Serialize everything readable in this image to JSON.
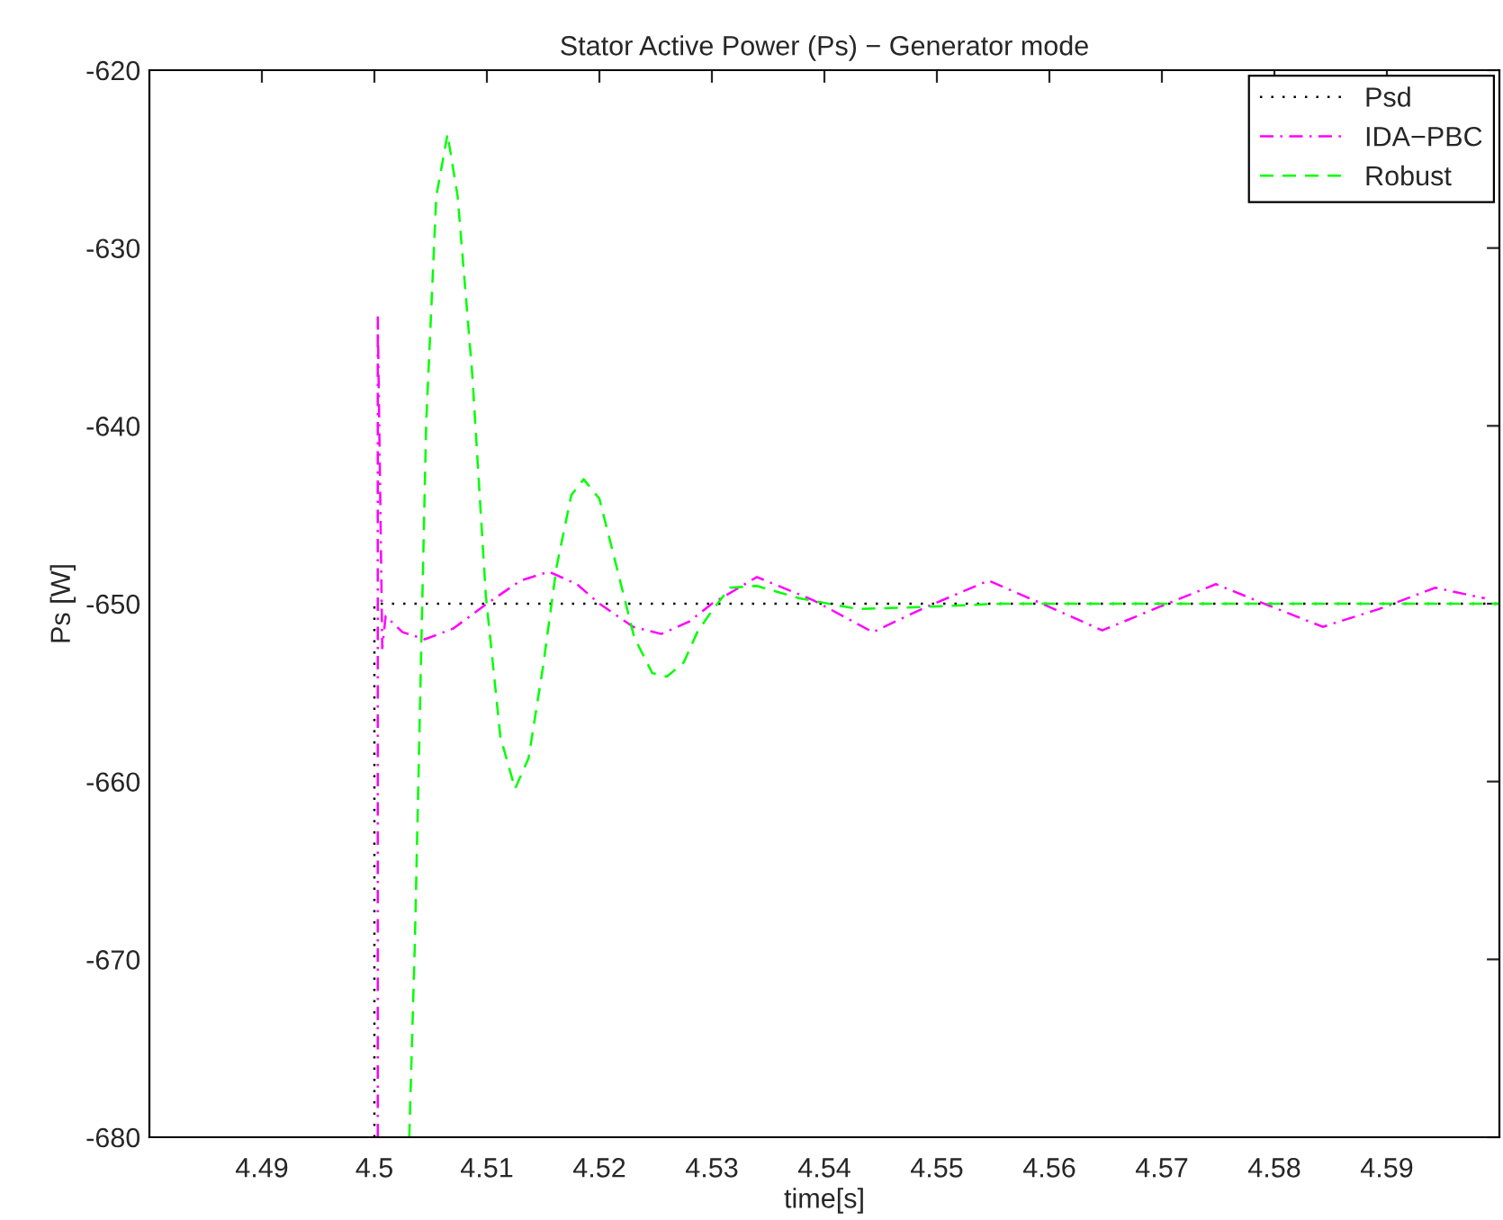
{
  "chart_data": {
    "type": "line",
    "title": "Stator Active Power (Ps) − Generator mode",
    "xlabel": "time[s]",
    "ylabel": "Ps [W]",
    "xlim": [
      4.48,
      4.6
    ],
    "xticks": [
      4.49,
      4.5,
      4.51,
      4.52,
      4.53,
      4.54,
      4.55,
      4.56,
      4.57,
      4.58,
      4.59
    ],
    "ylim": [
      -680,
      -620
    ],
    "yticks": [
      -680,
      -670,
      -660,
      -650,
      -640,
      -630,
      -620
    ],
    "grid": false,
    "legend": "top right",
    "series": [
      {
        "name": "Psd",
        "color": "#000000",
        "line_style": "dotted",
        "x": [
          4.5,
          4.5,
          4.6
        ],
        "values": [
          -680,
          -650,
          -650
        ]
      },
      {
        "name": "IDA−PBC",
        "color": "#ff00ff",
        "line_style": "dashdot",
        "x": [
          4.5003,
          4.5003,
          4.5007,
          4.501,
          4.5025,
          4.5045,
          4.507,
          4.51,
          4.513,
          4.5155,
          4.518,
          4.52,
          4.523,
          4.5255,
          4.528,
          4.53,
          4.534,
          4.539,
          4.5443,
          4.549,
          4.5546,
          4.5597,
          4.5647,
          4.5697,
          4.5748,
          4.5795,
          4.5843,
          4.5893,
          4.5943,
          4.5987
        ],
        "values": [
          -680,
          -633.9,
          -652.5,
          -650.7,
          -651.6,
          -652,
          -651.4,
          -650,
          -648.7,
          -648.2,
          -648.9,
          -650,
          -651.3,
          -651.7,
          -651.0,
          -650,
          -648.5,
          -649.8,
          -651.6,
          -650.2,
          -648.7,
          -650.1,
          -651.5,
          -650.2,
          -648.9,
          -650.1,
          -651.3,
          -650.3,
          -649.1,
          -649.7
        ]
      },
      {
        "name": "Robust",
        "color": "#00ff00",
        "line_style": "dashed",
        "x": [
          4.5031,
          4.5036,
          4.5046,
          4.5055,
          4.5065,
          4.5074,
          4.5087,
          4.5099,
          4.5112,
          4.5125,
          4.5137,
          4.515,
          4.5162,
          4.5175,
          4.5186,
          4.52,
          4.5212,
          4.5231,
          4.5247,
          4.526,
          4.5275,
          4.5287,
          4.53,
          4.5316,
          4.534,
          4.5378,
          4.543,
          4.548,
          4.5557,
          4.6
        ],
        "values": [
          -680,
          -669,
          -639.9,
          -627.1,
          -623.6,
          -627.1,
          -637.1,
          -649.5,
          -657.5,
          -660.4,
          -658.7,
          -653.5,
          -647.9,
          -643.9,
          -643,
          -644.1,
          -647.1,
          -651.9,
          -653.9,
          -654.1,
          -653.3,
          -651.6,
          -650.4,
          -649.1,
          -649.0,
          -649.7,
          -650.3,
          -650.2,
          -650.0,
          -650.0
        ]
      }
    ]
  }
}
